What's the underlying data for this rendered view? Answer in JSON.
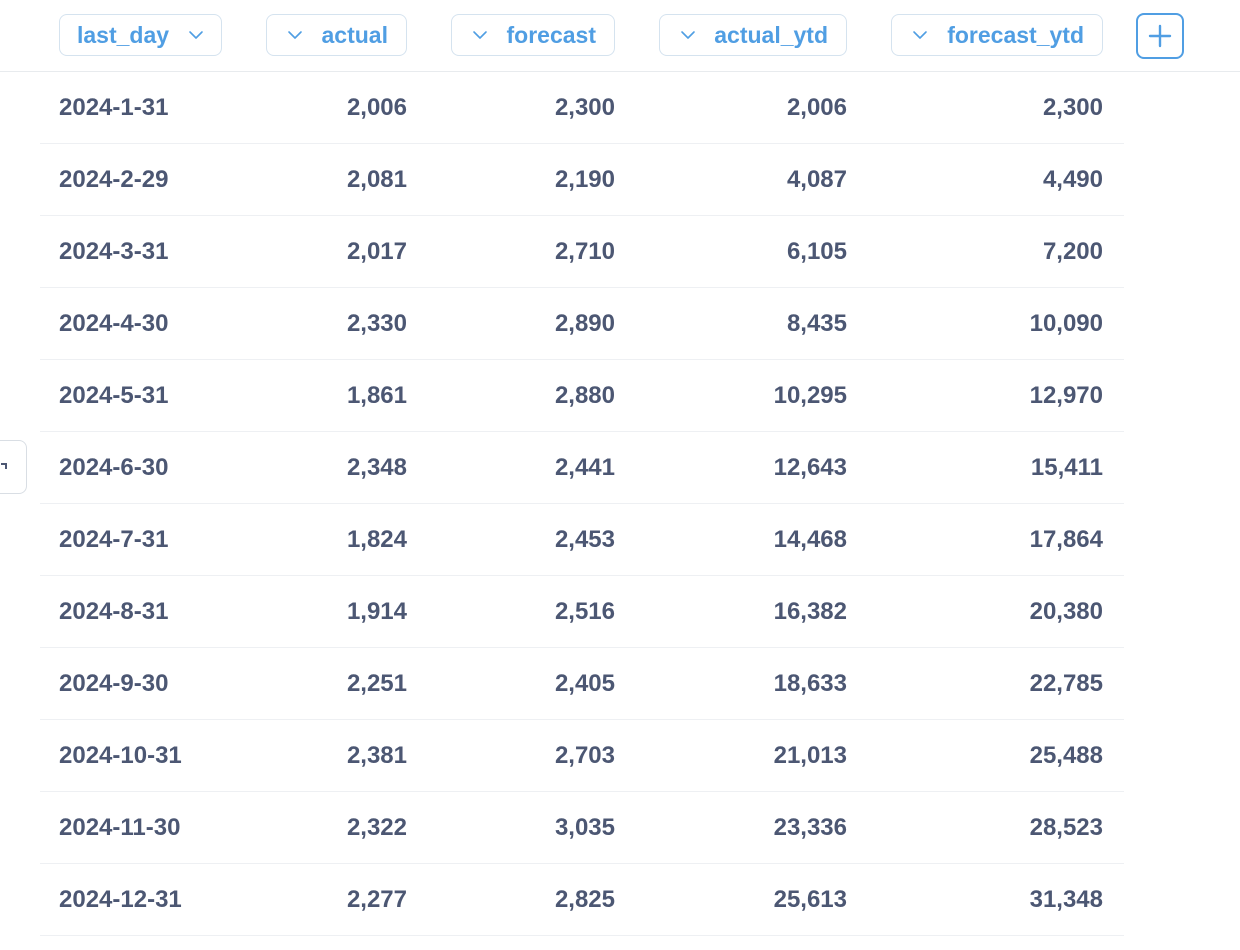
{
  "columns": [
    {
      "label": "last_day"
    },
    {
      "label": "actual"
    },
    {
      "label": "forecast"
    },
    {
      "label": "actual_ytd"
    },
    {
      "label": "forecast_ytd"
    }
  ],
  "add_column_icon": "plus-icon",
  "chevron_icon": "chevron-down-icon",
  "colors": {
    "accent": "#509ee3",
    "text": "#4c5773",
    "pill_border": "#d5e3ef",
    "row_divider": "#eef0f3"
  },
  "rows": [
    {
      "last_day": "2024-1-31",
      "actual": "2,006",
      "forecast": "2,300",
      "actual_ytd": "2,006",
      "forecast_ytd": "2,300"
    },
    {
      "last_day": "2024-2-29",
      "actual": "2,081",
      "forecast": "2,190",
      "actual_ytd": "4,087",
      "forecast_ytd": "4,490"
    },
    {
      "last_day": "2024-3-31",
      "actual": "2,017",
      "forecast": "2,710",
      "actual_ytd": "6,105",
      "forecast_ytd": "7,200"
    },
    {
      "last_day": "2024-4-30",
      "actual": "2,330",
      "forecast": "2,890",
      "actual_ytd": "8,435",
      "forecast_ytd": "10,090"
    },
    {
      "last_day": "2024-5-31",
      "actual": "1,861",
      "forecast": "2,880",
      "actual_ytd": "10,295",
      "forecast_ytd": "12,970"
    },
    {
      "last_day": "2024-6-30",
      "actual": "2,348",
      "forecast": "2,441",
      "actual_ytd": "12,643",
      "forecast_ytd": "15,411"
    },
    {
      "last_day": "2024-7-31",
      "actual": "1,824",
      "forecast": "2,453",
      "actual_ytd": "14,468",
      "forecast_ytd": "17,864"
    },
    {
      "last_day": "2024-8-31",
      "actual": "1,914",
      "forecast": "2,516",
      "actual_ytd": "16,382",
      "forecast_ytd": "20,380"
    },
    {
      "last_day": "2024-9-30",
      "actual": "2,251",
      "forecast": "2,405",
      "actual_ytd": "18,633",
      "forecast_ytd": "22,785"
    },
    {
      "last_day": "2024-10-31",
      "actual": "2,381",
      "forecast": "2,703",
      "actual_ytd": "21,013",
      "forecast_ytd": "25,488"
    },
    {
      "last_day": "2024-11-30",
      "actual": "2,322",
      "forecast": "3,035",
      "actual_ytd": "23,336",
      "forecast_ytd": "28,523"
    },
    {
      "last_day": "2024-12-31",
      "actual": "2,277",
      "forecast": "2,825",
      "actual_ytd": "25,613",
      "forecast_ytd": "31,348"
    }
  ]
}
